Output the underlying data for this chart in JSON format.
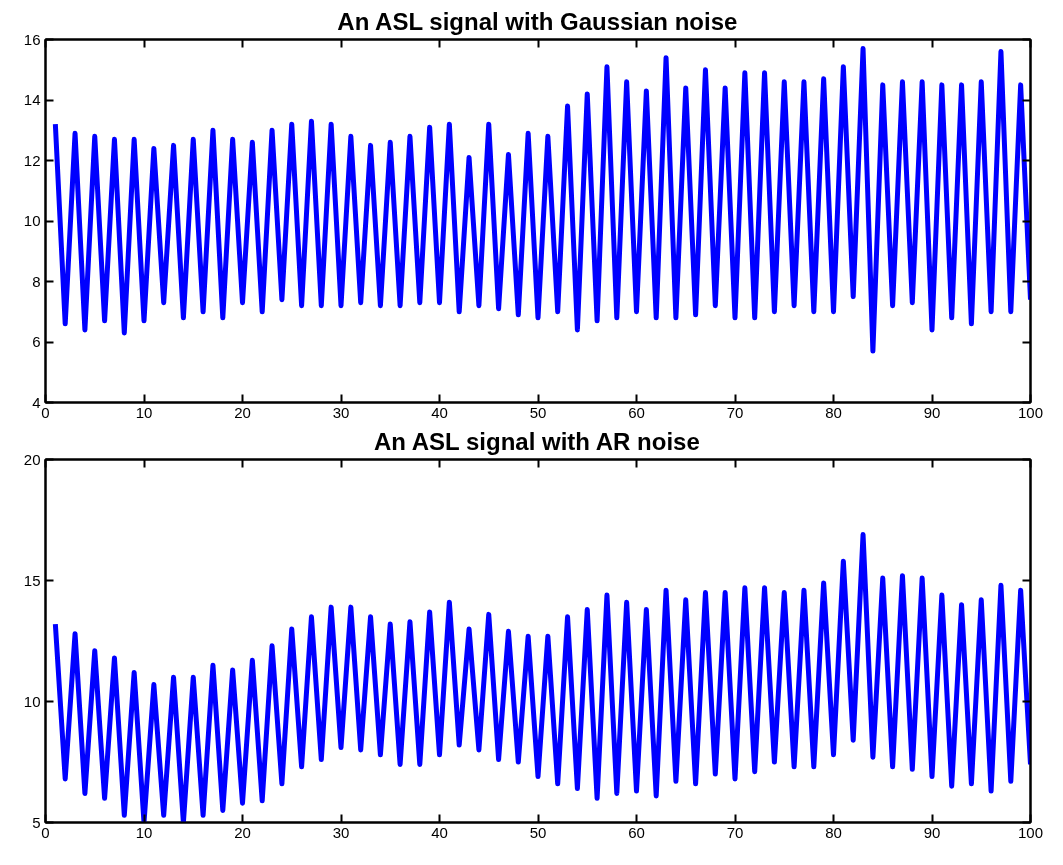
{
  "chart_data": [
    {
      "type": "line",
      "title": "An ASL signal with Gaussian noise",
      "xlim": [
        0,
        100
      ],
      "ylim": [
        4,
        16
      ],
      "xticks": [
        0,
        10,
        20,
        30,
        40,
        50,
        60,
        70,
        80,
        90,
        100
      ],
      "yticks": [
        4,
        6,
        8,
        10,
        12,
        14,
        16
      ],
      "grid": false,
      "x": [
        1,
        2,
        3,
        4,
        5,
        6,
        7,
        8,
        9,
        10,
        11,
        12,
        13,
        14,
        15,
        16,
        17,
        18,
        19,
        20,
        21,
        22,
        23,
        24,
        25,
        26,
        27,
        28,
        29,
        30,
        31,
        32,
        33,
        34,
        35,
        36,
        37,
        38,
        39,
        40,
        41,
        42,
        43,
        44,
        45,
        46,
        47,
        48,
        49,
        50,
        51,
        52,
        53,
        54,
        55,
        56,
        57,
        58,
        59,
        60,
        61,
        62,
        63,
        64,
        65,
        66,
        67,
        68,
        69,
        70,
        71,
        72,
        73,
        74,
        75,
        76,
        77,
        78,
        79,
        80,
        81,
        82,
        83,
        84,
        85,
        86,
        87,
        88,
        89,
        90,
        91,
        92,
        93,
        94,
        95,
        96,
        97,
        98,
        99,
        100
      ],
      "series": [
        {
          "color": "#0000ff",
          "values": [
            13.2,
            6.6,
            12.9,
            6.4,
            12.8,
            6.7,
            12.7,
            6.3,
            12.7,
            6.7,
            12.4,
            7.3,
            12.5,
            6.8,
            12.7,
            7.0,
            13.0,
            6.8,
            12.7,
            7.3,
            12.6,
            7.0,
            13.0,
            7.4,
            13.2,
            7.2,
            13.3,
            7.2,
            13.2,
            7.2,
            12.8,
            7.3,
            12.5,
            7.2,
            12.6,
            7.2,
            12.8,
            7.3,
            13.1,
            7.3,
            13.2,
            7.0,
            12.1,
            7.2,
            13.2,
            7.1,
            12.2,
            6.9,
            12.9,
            6.8,
            12.8,
            7.0,
            13.8,
            6.4,
            14.2,
            6.7,
            15.1,
            6.8,
            14.6,
            7.0,
            14.3,
            6.8,
            15.4,
            6.8,
            14.4,
            6.9,
            15.0,
            7.2,
            14.4,
            6.8,
            14.9,
            6.8,
            14.9,
            7.0,
            14.6,
            7.2,
            14.6,
            7.0,
            14.7,
            7.0,
            15.1,
            7.5,
            15.7,
            5.7,
            14.5,
            7.2,
            14.6,
            7.3,
            14.6,
            6.4,
            14.5,
            6.8,
            14.5,
            6.6,
            14.6,
            7.0,
            15.6,
            7.0,
            14.5,
            7.4
          ]
        }
      ]
    },
    {
      "type": "line",
      "title": "An ASL signal with AR noise",
      "xlim": [
        0,
        100
      ],
      "ylim": [
        5,
        20
      ],
      "xticks": [
        0,
        10,
        20,
        30,
        40,
        50,
        60,
        70,
        80,
        90,
        100
      ],
      "yticks": [
        5,
        10,
        15,
        20
      ],
      "grid": false,
      "x": [
        1,
        2,
        3,
        4,
        5,
        6,
        7,
        8,
        9,
        10,
        11,
        12,
        13,
        14,
        15,
        16,
        17,
        18,
        19,
        20,
        21,
        22,
        23,
        24,
        25,
        26,
        27,
        28,
        29,
        30,
        31,
        32,
        33,
        34,
        35,
        36,
        37,
        38,
        39,
        40,
        41,
        42,
        43,
        44,
        45,
        46,
        47,
        48,
        49,
        50,
        51,
        52,
        53,
        54,
        55,
        56,
        57,
        58,
        59,
        60,
        61,
        62,
        63,
        64,
        65,
        66,
        67,
        68,
        69,
        70,
        71,
        72,
        73,
        74,
        75,
        76,
        77,
        78,
        79,
        80,
        81,
        82,
        83,
        84,
        85,
        86,
        87,
        88,
        89,
        90,
        91,
        92,
        93,
        94,
        95,
        96,
        97,
        98,
        99,
        100
      ],
      "series": [
        {
          "color": "#0000ff",
          "values": [
            13.2,
            6.8,
            12.8,
            6.2,
            12.1,
            6.0,
            11.8,
            5.3,
            11.2,
            5.0,
            10.7,
            5.3,
            11.0,
            5.0,
            11.0,
            5.3,
            11.5,
            5.5,
            11.3,
            5.8,
            11.7,
            5.9,
            12.3,
            6.6,
            13.0,
            7.3,
            13.5,
            7.6,
            13.9,
            8.1,
            13.9,
            8.0,
            13.5,
            7.8,
            13.2,
            7.4,
            13.3,
            7.4,
            13.7,
            7.8,
            14.1,
            8.2,
            13.0,
            8.0,
            13.6,
            7.6,
            12.9,
            7.5,
            12.7,
            6.9,
            12.7,
            6.6,
            13.5,
            6.4,
            13.8,
            6.0,
            14.4,
            6.2,
            14.1,
            6.3,
            13.8,
            6.1,
            14.6,
            6.7,
            14.2,
            6.6,
            14.5,
            7.0,
            14.5,
            6.8,
            14.7,
            7.1,
            14.7,
            7.5,
            14.5,
            7.3,
            14.6,
            7.3,
            14.9,
            7.8,
            15.8,
            8.4,
            16.9,
            7.7,
            15.1,
            7.3,
            15.2,
            7.2,
            15.1,
            6.9,
            14.4,
            6.5,
            14.0,
            6.6,
            14.2,
            6.3,
            14.8,
            6.7,
            14.6,
            7.4
          ]
        }
      ]
    }
  ]
}
